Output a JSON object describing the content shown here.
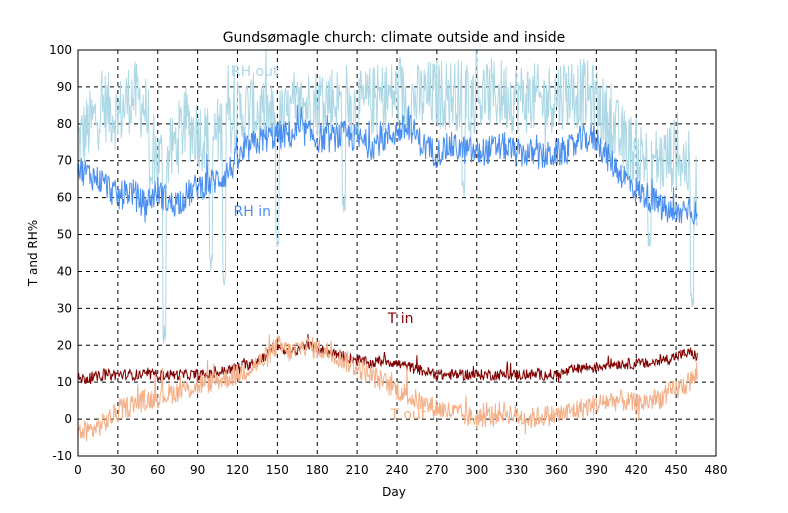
{
  "chart_data": {
    "type": "line",
    "title": "Gundsømagle church: climate outside and inside",
    "xlabel": "Day",
    "ylabel": "T and RH%",
    "xlim": [
      0,
      480
    ],
    "ylim": [
      -10,
      100
    ],
    "xticks": [
      0,
      30,
      60,
      90,
      120,
      150,
      180,
      210,
      240,
      270,
      300,
      330,
      360,
      390,
      420,
      450,
      480
    ],
    "yticks": [
      -10,
      0,
      10,
      20,
      30,
      40,
      50,
      60,
      70,
      80,
      90,
      100
    ],
    "grid": true,
    "series": [
      {
        "name": "RH out",
        "color": "#add8e6",
        "label_at": [
          115,
          93
        ],
        "x": [
          0,
          10,
          20,
          30,
          40,
          50,
          60,
          70,
          80,
          90,
          100,
          110,
          120,
          130,
          140,
          150,
          160,
          170,
          180,
          190,
          200,
          210,
          220,
          230,
          240,
          250,
          260,
          270,
          280,
          290,
          300,
          310,
          320,
          330,
          340,
          350,
          360,
          370,
          380,
          390,
          400,
          410,
          420,
          430,
          440,
          450,
          460,
          466
        ],
        "values": [
          75,
          80,
          85,
          82,
          88,
          85,
          70,
          72,
          80,
          78,
          75,
          80,
          82,
          84,
          83,
          80,
          82,
          85,
          86,
          87,
          85,
          84,
          86,
          87,
          88,
          86,
          87,
          88,
          88,
          88,
          87,
          88,
          88,
          87,
          87,
          86,
          88,
          89,
          88,
          86,
          80,
          75,
          72,
          70,
          70,
          72,
          68,
          60
        ],
        "noise": 10,
        "dips": [
          [
            55,
            60
          ],
          [
            65,
            20
          ],
          [
            100,
            40
          ],
          [
            110,
            35
          ],
          [
            150,
            45
          ],
          [
            200,
            55
          ],
          [
            290,
            60
          ],
          [
            430,
            45
          ],
          [
            462,
            30
          ]
        ]
      },
      {
        "name": "RH in",
        "color": "#4a8ff0",
        "label_at": [
          117,
          55
        ],
        "x": [
          0,
          10,
          20,
          30,
          40,
          50,
          60,
          70,
          80,
          90,
          100,
          110,
          120,
          130,
          140,
          150,
          160,
          170,
          180,
          190,
          200,
          210,
          220,
          230,
          240,
          250,
          260,
          270,
          280,
          290,
          300,
          310,
          320,
          330,
          340,
          350,
          360,
          370,
          380,
          390,
          400,
          410,
          420,
          430,
          440,
          450,
          460,
          466
        ],
        "values": [
          68,
          66,
          64,
          60,
          62,
          58,
          62,
          58,
          60,
          63,
          64,
          66,
          70,
          74,
          76,
          77,
          77,
          78,
          76,
          76,
          77,
          76,
          74,
          76,
          78,
          79,
          74,
          72,
          74,
          73,
          72,
          73,
          74,
          72,
          72,
          71,
          72,
          73,
          76,
          76,
          70,
          66,
          62,
          60,
          57,
          55,
          58,
          55
        ],
        "noise": 4
      },
      {
        "name": "T in",
        "color": "#800000",
        "label_at": [
          233,
          26
        ],
        "x": [
          0,
          10,
          20,
          30,
          40,
          50,
          60,
          70,
          80,
          90,
          100,
          110,
          120,
          130,
          140,
          150,
          160,
          170,
          180,
          190,
          200,
          210,
          220,
          230,
          240,
          250,
          260,
          270,
          280,
          290,
          300,
          310,
          320,
          330,
          340,
          350,
          360,
          370,
          380,
          390,
          400,
          410,
          420,
          430,
          440,
          450,
          460,
          466
        ],
        "values": [
          11,
          11,
          12,
          12,
          12,
          12,
          12,
          12,
          12,
          12,
          12,
          13,
          14,
          15,
          17,
          20,
          18,
          20,
          19,
          18,
          17,
          16,
          15,
          16,
          15,
          14,
          13,
          12,
          12,
          12,
          12,
          12,
          12,
          12,
          12,
          12,
          12,
          13,
          14,
          14,
          15,
          15,
          15,
          15,
          16,
          17,
          18,
          17
        ],
        "noise": 1.5
      },
      {
        "name": "T out",
        "color": "#f4b088",
        "label_at": [
          235,
          0
        ],
        "x": [
          0,
          10,
          20,
          30,
          40,
          50,
          60,
          70,
          80,
          90,
          100,
          110,
          120,
          130,
          140,
          150,
          160,
          170,
          180,
          190,
          200,
          210,
          220,
          230,
          240,
          250,
          260,
          270,
          280,
          290,
          300,
          310,
          320,
          330,
          340,
          350,
          360,
          370,
          380,
          390,
          400,
          410,
          420,
          430,
          440,
          450,
          460,
          466
        ],
        "values": [
          -4,
          -3,
          -1,
          2,
          4,
          5,
          6,
          7,
          8,
          9,
          10,
          11,
          12,
          14,
          16,
          20,
          18,
          20,
          19,
          18,
          16,
          14,
          12,
          10,
          8,
          6,
          4,
          3,
          2,
          1,
          0,
          1,
          2,
          1,
          0,
          1,
          1,
          2,
          3,
          4,
          5,
          5,
          4,
          5,
          6,
          8,
          10,
          12
        ],
        "noise": 3
      }
    ]
  }
}
